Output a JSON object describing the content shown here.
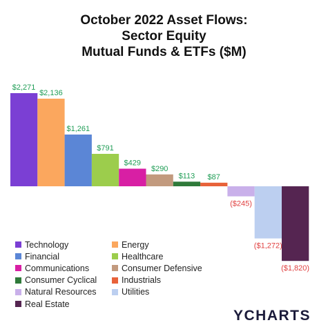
{
  "title": {
    "line1": "October 2022 Asset Flows:",
    "line2": "Sector Equity",
    "line3": "Mutual Funds & ETFs ($M)"
  },
  "logo_text": "YCHARTS",
  "chart_data": {
    "type": "bar",
    "categories": [
      "Technology",
      "Energy",
      "Financial",
      "Healthcare",
      "Communications",
      "Consumer Defensive",
      "Consumer Cyclical",
      "Industrials",
      "Natural Resources",
      "Utilities",
      "Real Estate"
    ],
    "values": [
      2271,
      2136,
      1261,
      791,
      429,
      290,
      113,
      87,
      -245,
      -1272,
      -1820
    ],
    "data_labels": [
      "$2,271",
      "$2,136",
      "$1,261",
      "$791",
      "$429",
      "$290",
      "$113",
      "$87",
      "($245)",
      "($1,272)",
      "($1,820)"
    ],
    "colors": [
      "#7b3fd4",
      "#fba75e",
      "#5b86d6",
      "#9ccd4c",
      "#d81fa4",
      "#c29a7e",
      "#2f7a3a",
      "#e8623a",
      "#c9b0ea",
      "#bccff0",
      "#552551"
    ],
    "positive_label_color": "#1f9d55",
    "negative_label_color": "#e04040",
    "legend_position": "bottom-left",
    "grid": false,
    "ylim": [
      -1820,
      2271
    ]
  }
}
